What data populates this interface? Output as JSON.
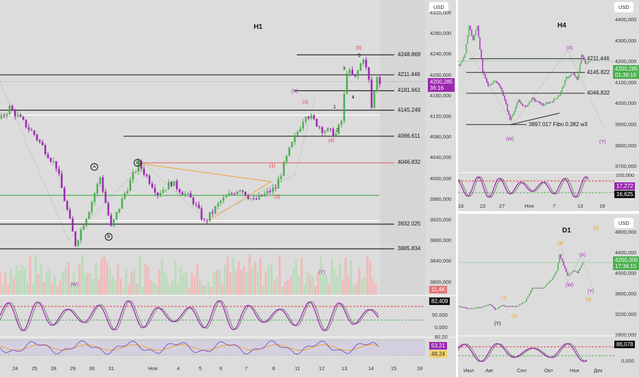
{
  "colors": {
    "up": "#4caf50",
    "down": "#9c27b0",
    "accent": "#9c27b0",
    "green_box": "#4caf50"
  },
  "h1": {
    "title": "H1",
    "currency": "USD",
    "price_axis": [
      "4320,000",
      "4280,000",
      "4240,000",
      "4200,000",
      "4160,000",
      "4120,000",
      "4080,000",
      "4040,000",
      "4000,000",
      "3960,000",
      "3920,000",
      "3880,000",
      "3840,000",
      "3800,000"
    ],
    "levels": [
      "4248.869",
      "4211.446",
      "4181.661",
      "4145.248",
      "4096.611",
      "4046.832",
      "3932.025",
      "3885.834"
    ],
    "last_price": "4200,285",
    "countdown": "36:16",
    "volume": "11,4K",
    "stoch": {
      "value": "82,409",
      "axis": [
        "50,000",
        "0,000"
      ]
    },
    "rsi": {
      "value1": "53,21",
      "value2": "48,24",
      "axis": [
        "80,00"
      ]
    },
    "dates": [
      "24",
      "25",
      "28",
      "29",
      "30",
      "31",
      "Ноя",
      "4",
      "5",
      "6",
      "7",
      "8",
      "11",
      "12",
      "13",
      "14",
      "15",
      "18"
    ],
    "waves": {
      "w5p": "(5)",
      "w5": "5",
      "w3": "3",
      "w4": "4",
      "wX": "(X)",
      "w3p": "(3)",
      "w1": "1",
      "w2": "2",
      "w4p": "(4)",
      "w1p": "(1)",
      "w2p": "(2)",
      "A": "A",
      "B": "B",
      "C": "C",
      "wW": "(W)",
      "wY": "(Y)"
    }
  },
  "h4": {
    "title": "H4",
    "currency": "USD",
    "price_axis": [
      "4400,000",
      "4300,000",
      "4200,000",
      "4100,000",
      "4000,000",
      "3900,000",
      "3800,000",
      "3700,000"
    ],
    "levels": [
      "4211.446",
      "4145.822",
      "4046.832",
      "3897.017 Fibo 0.382 w3"
    ],
    "last_price": "4200,285",
    "countdown": "01:36:16",
    "stoch": {
      "value1": "17,272",
      "value2": "16,625",
      "axis": [
        "100,000"
      ]
    },
    "dates": [
      "16",
      "22",
      "27",
      "Ноя",
      "7",
      "13",
      "19"
    ],
    "waves": {
      "wX": "(X)",
      "wW": "(W)",
      "wY": "(Y)"
    }
  },
  "d1": {
    "title": "D1",
    "currency": "USD",
    "price_axis": [
      "4800,000",
      "4400,000",
      "4000,000",
      "3600,000",
      "3200,000",
      "2800,000"
    ],
    "last_price": "4200,300",
    "countdown": "17:36:15",
    "stoch": {
      "value": "86,078",
      "axis": [
        "0,000"
      ]
    },
    "dates": [
      "Июл",
      "Авг",
      "Сен",
      "Окт",
      "Ноя",
      "Дек"
    ],
    "waves": {
      "w5": "(5)",
      "w3": "(3)",
      "wX": "(X)",
      "wW": "(W)",
      "wY": "(Y)",
      "w4": "(4)",
      "w1": "(1)",
      "w2": "(2)",
      "wYb": "(Y)"
    }
  },
  "chart_data": [
    {
      "type": "candlestick",
      "title": "H1",
      "waypoints": [
        [
          0,
          4130
        ],
        [
          3,
          4150
        ],
        [
          12,
          4100
        ],
        [
          20,
          4040
        ],
        [
          27,
          3895
        ],
        [
          32,
          3960
        ],
        [
          36,
          4020
        ],
        [
          40,
          3925
        ],
        [
          45,
          3990
        ],
        [
          50,
          4045
        ],
        [
          57,
          3990
        ],
        [
          62,
          4010
        ],
        [
          70,
          3975
        ],
        [
          74,
          3935
        ],
        [
          80,
          3975
        ],
        [
          87,
          4000
        ],
        [
          92,
          3975
        ],
        [
          100,
          4000
        ],
        [
          105,
          4070
        ],
        [
          111,
          4140
        ],
        [
          117,
          4110
        ],
        [
          122,
          4100
        ],
        [
          124,
          4125
        ],
        [
          126,
          4220
        ],
        [
          129,
          4205
        ],
        [
          132,
          4245
        ],
        [
          134,
          4200
        ],
        [
          135,
          4150
        ],
        [
          137,
          4210
        ],
        [
          138,
          4200
        ]
      ]
    },
    {
      "type": "candlestick",
      "title": "H4",
      "waypoints": [
        [
          0,
          4180
        ],
        [
          4,
          4230
        ],
        [
          7,
          4370
        ],
        [
          10,
          4300
        ],
        [
          13,
          4370
        ],
        [
          17,
          4150
        ],
        [
          21,
          4080
        ],
        [
          26,
          4110
        ],
        [
          31,
          4060
        ],
        [
          37,
          3920
        ],
        [
          43,
          4010
        ],
        [
          48,
          3980
        ],
        [
          53,
          4020
        ],
        [
          61,
          3990
        ],
        [
          68,
          4010
        ],
        [
          73,
          4040
        ],
        [
          78,
          4120
        ],
        [
          83,
          4140
        ],
        [
          86,
          4110
        ],
        [
          89,
          4230
        ],
        [
          92,
          4190
        ],
        [
          95,
          4200
        ]
      ]
    },
    {
      "type": "candlestick",
      "title": "D1",
      "waypoints": [
        [
          0,
          3350
        ],
        [
          6,
          3300
        ],
        [
          16,
          3330
        ],
        [
          22,
          3390
        ],
        [
          26,
          3290
        ],
        [
          31,
          3360
        ],
        [
          41,
          3340
        ],
        [
          48,
          3450
        ],
        [
          53,
          3700
        ],
        [
          61,
          3700
        ],
        [
          68,
          3900
        ],
        [
          71,
          4050
        ],
        [
          73,
          4350
        ],
        [
          76,
          4150
        ],
        [
          79,
          3950
        ],
        [
          83,
          4050
        ],
        [
          86,
          4000
        ],
        [
          90,
          4200
        ]
      ]
    }
  ]
}
